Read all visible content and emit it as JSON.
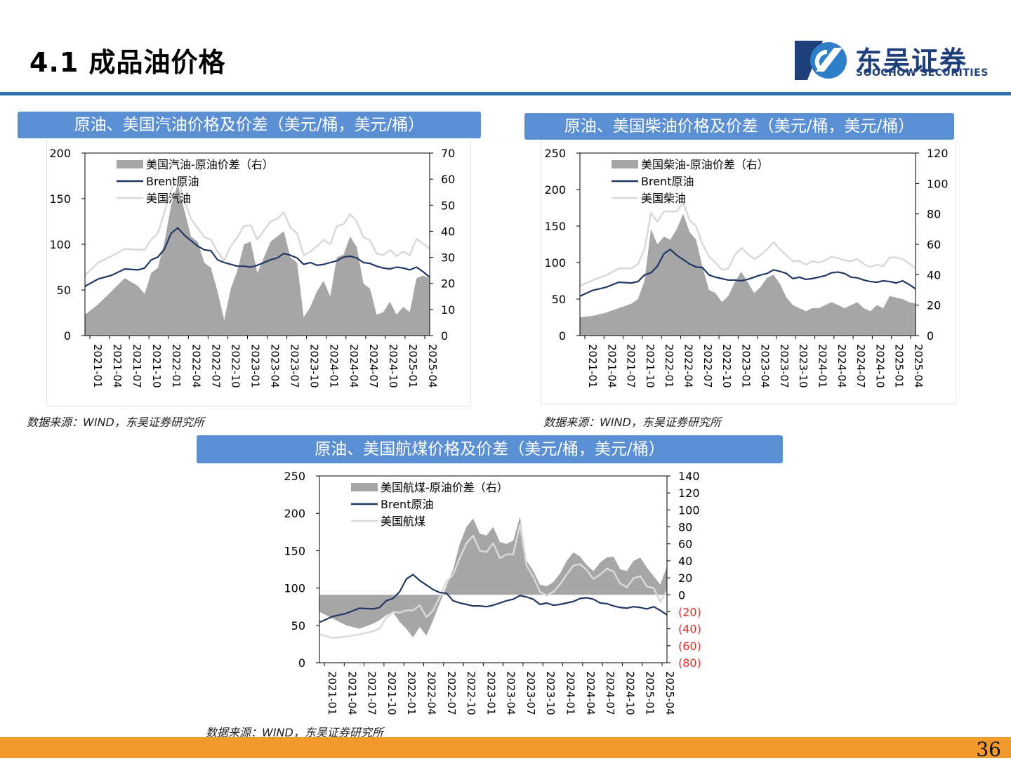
{
  "slide": {
    "title": "4.1 成品油价格",
    "logo_cn": "东吴证券",
    "logo_en": "SOOCHOW SECURITIES",
    "page_number": "36",
    "source": "数据来源：WIND，东吴证券研究所"
  },
  "colors": {
    "header_bg": "#5b8fd4",
    "rule": "#2f6fb0",
    "footer": "#f39a2e",
    "spread_fill": "#a6a6a6",
    "brent_line": "#1f3864",
    "product_line": "#d9d9d9",
    "negative_tick": "#e8302a"
  },
  "chart_data": [
    {
      "type": "area+line",
      "title": "原油、美国汽油价格及价差（美元/桶，美元/桶）",
      "x_ticks": [
        "2021-01",
        "2021-04",
        "2021-07",
        "2021-10",
        "2022-01",
        "2022-04",
        "2022-07",
        "2022-10",
        "2023-01",
        "2023-04",
        "2023-07",
        "2023-10",
        "2024-01",
        "2024-04",
        "2024-07",
        "2024-10",
        "2025-01",
        "2025-04"
      ],
      "left_ylim": [
        0,
        200
      ],
      "left_ticks": [
        "0",
        "50",
        "100",
        "150",
        "200"
      ],
      "right_ylim": [
        0,
        70
      ],
      "right_ticks": [
        "0",
        "10",
        "20",
        "30",
        "40",
        "50",
        "60",
        "70"
      ],
      "legend": [
        "美国汽油-原油价差（右）",
        "Brent原油",
        "美国汽油"
      ],
      "series": [
        {
          "name": "美国汽油-原油价差（右）",
          "axis": "right",
          "kind": "area",
          "x": [
            0,
            2,
            4,
            6,
            8,
            9,
            10,
            11,
            12,
            13,
            14,
            15,
            16,
            17,
            18,
            19,
            20,
            21,
            22,
            23,
            24,
            25,
            26,
            27,
            28,
            29,
            30,
            31,
            32,
            33,
            34,
            35,
            36,
            37,
            38,
            39,
            40,
            41,
            42,
            43,
            44,
            45,
            46,
            47,
            48,
            49,
            50,
            51,
            52
          ],
          "values": [
            8,
            12,
            17,
            22,
            19,
            16,
            24,
            26,
            36,
            50,
            58,
            48,
            38,
            36,
            28,
            26,
            17,
            6,
            18,
            25,
            35,
            36,
            24,
            30,
            36,
            38,
            40,
            30,
            28,
            7,
            11,
            17,
            21,
            15,
            30,
            31,
            38,
            34,
            20,
            18,
            8,
            9,
            13,
            8,
            11,
            9,
            22,
            23,
            22
          ]
        },
        {
          "name": "Brent原油",
          "axis": "left",
          "kind": "line",
          "x": [
            0,
            2,
            4,
            6,
            8,
            9,
            10,
            11,
            12,
            13,
            14,
            15,
            16,
            17,
            18,
            19,
            20,
            21,
            22,
            23,
            24,
            25,
            26,
            27,
            28,
            29,
            30,
            31,
            32,
            33,
            34,
            35,
            36,
            37,
            38,
            39,
            40,
            41,
            42,
            43,
            44,
            45,
            46,
            47,
            48,
            49,
            50,
            51,
            52
          ],
          "values": [
            54,
            62,
            66,
            73,
            72,
            74,
            83,
            86,
            95,
            112,
            118,
            110,
            104,
            98,
            94,
            93,
            83,
            80,
            78,
            76,
            76,
            75,
            77,
            80,
            83,
            85,
            90,
            88,
            85,
            78,
            80,
            77,
            78,
            80,
            82,
            86,
            87,
            85,
            80,
            79,
            76,
            74,
            73,
            75,
            74,
            72,
            75,
            70,
            64
          ]
        },
        {
          "name": "美国汽油",
          "axis": "left",
          "kind": "line",
          "x": [
            0,
            2,
            4,
            6,
            8,
            9,
            10,
            11,
            12,
            13,
            14,
            15,
            16,
            17,
            18,
            19,
            20,
            21,
            22,
            23,
            24,
            25,
            26,
            27,
            28,
            29,
            30,
            31,
            32,
            33,
            34,
            35,
            36,
            37,
            38,
            39,
            40,
            41,
            42,
            43,
            44,
            45,
            46,
            47,
            48,
            49,
            50,
            51,
            52
          ],
          "values": [
            66,
            80,
            87,
            95,
            94,
            94,
            105,
            112,
            135,
            160,
            172,
            148,
            128,
            118,
            108,
            105,
            92,
            82,
            98,
            108,
            120,
            121,
            105,
            115,
            125,
            128,
            135,
            118,
            112,
            88,
            92,
            98,
            105,
            100,
            120,
            122,
            133,
            125,
            108,
            104,
            90,
            88,
            94,
            87,
            92,
            88,
            106,
            101,
            95
          ]
        }
      ]
    },
    {
      "type": "area+line",
      "title": "原油、美国柴油价格及价差（美元/桶，美元/桶）",
      "x_ticks": [
        "2021-01",
        "2021-04",
        "2021-07",
        "2021-10",
        "2022-01",
        "2022-04",
        "2022-07",
        "2022-10",
        "2023-01",
        "2023-04",
        "2023-07",
        "2023-10",
        "2024-01",
        "2024-04",
        "2024-07",
        "2024-10",
        "2025-01",
        "2025-04"
      ],
      "left_ylim": [
        0,
        250
      ],
      "left_ticks": [
        "0",
        "50",
        "100",
        "150",
        "200",
        "250"
      ],
      "right_ylim": [
        0,
        120
      ],
      "right_ticks": [
        "0",
        "20",
        "40",
        "60",
        "80",
        "100",
        "120"
      ],
      "legend": [
        "美国柴油-原油价差（右）",
        "Brent原油",
        "美国柴油"
      ],
      "series": [
        {
          "name": "美国柴油-原油价差（右）",
          "axis": "right",
          "kind": "area",
          "x": [
            0,
            2,
            4,
            6,
            8,
            9,
            10,
            11,
            12,
            13,
            14,
            15,
            16,
            17,
            18,
            19,
            20,
            21,
            22,
            23,
            24,
            25,
            26,
            27,
            28,
            29,
            30,
            31,
            32,
            33,
            34,
            35,
            36,
            37,
            38,
            39,
            40,
            41,
            42,
            43,
            44,
            45,
            46,
            47,
            48,
            49,
            50,
            51,
            52
          ],
          "values": [
            12,
            13,
            15,
            18,
            21,
            24,
            36,
            70,
            60,
            65,
            63,
            70,
            80,
            68,
            63,
            45,
            30,
            28,
            22,
            26,
            35,
            42,
            35,
            28,
            32,
            38,
            40,
            34,
            25,
            20,
            18,
            16,
            18,
            18,
            20,
            22,
            20,
            18,
            20,
            22,
            18,
            16,
            20,
            18,
            26,
            25,
            24,
            22,
            21
          ]
        },
        {
          "name": "Brent原油",
          "axis": "left",
          "kind": "line",
          "x": [
            0,
            2,
            4,
            6,
            8,
            9,
            10,
            11,
            12,
            13,
            14,
            15,
            16,
            17,
            18,
            19,
            20,
            21,
            22,
            23,
            24,
            25,
            26,
            27,
            28,
            29,
            30,
            31,
            32,
            33,
            34,
            35,
            36,
            37,
            38,
            39,
            40,
            41,
            42,
            43,
            44,
            45,
            46,
            47,
            48,
            49,
            50,
            51,
            52
          ],
          "values": [
            54,
            62,
            66,
            73,
            72,
            74,
            83,
            86,
            95,
            112,
            118,
            110,
            104,
            98,
            94,
            93,
            83,
            80,
            78,
            76,
            76,
            75,
            77,
            80,
            83,
            85,
            90,
            88,
            85,
            78,
            80,
            77,
            78,
            80,
            82,
            86,
            87,
            85,
            80,
            79,
            76,
            74,
            73,
            75,
            74,
            72,
            75,
            70,
            64
          ]
        },
        {
          "name": "美国柴油",
          "axis": "left",
          "kind": "line",
          "x": [
            0,
            2,
            4,
            6,
            8,
            9,
            10,
            11,
            12,
            13,
            14,
            15,
            16,
            17,
            18,
            19,
            20,
            21,
            22,
            23,
            24,
            25,
            26,
            27,
            28,
            29,
            30,
            31,
            32,
            33,
            34,
            35,
            36,
            37,
            38,
            39,
            40,
            41,
            42,
            43,
            44,
            45,
            46,
            47,
            48,
            49,
            50,
            51,
            52
          ],
          "values": [
            68,
            76,
            82,
            92,
            92,
            98,
            118,
            168,
            156,
            170,
            170,
            170,
            182,
            158,
            150,
            125,
            108,
            100,
            90,
            92,
            110,
            120,
            112,
            105,
            110,
            118,
            128,
            118,
            110,
            102,
            102,
            97,
            102,
            100,
            103,
            108,
            106,
            103,
            102,
            105,
            98,
            94,
            97,
            95,
            107,
            107,
            105,
            99,
            92
          ]
        }
      ]
    },
    {
      "type": "area+line",
      "title": "原油、美国航煤价格及价差（美元/桶，美元/桶）",
      "x_ticks": [
        "2021-01",
        "2021-04",
        "2021-07",
        "2021-10",
        "2022-01",
        "2022-04",
        "2022-07",
        "2022-10",
        "2023-01",
        "2023-04",
        "2023-07",
        "2023-10",
        "2024-01",
        "2024-04",
        "2024-07",
        "2024-10",
        "2025-01",
        "2025-04"
      ],
      "left_ylim": [
        0,
        250
      ],
      "left_ticks": [
        "0",
        "50",
        "100",
        "150",
        "200",
        "250"
      ],
      "right_ylim": [
        -80,
        140
      ],
      "right_ticks": [
        "(80)",
        "(60)",
        "(40)",
        "(20)",
        "0",
        "20",
        "40",
        "60",
        "80",
        "100",
        "120",
        "140"
      ],
      "legend": [
        "美国航煤-原油价差（右）",
        "Brent原油",
        "美国航煤"
      ],
      "series": [
        {
          "name": "美国航煤-原油价差（右）",
          "axis": "right",
          "kind": "area",
          "x": [
            0,
            2,
            4,
            6,
            8,
            9,
            10,
            11,
            12,
            13,
            14,
            15,
            16,
            17,
            18,
            19,
            20,
            21,
            22,
            23,
            24,
            25,
            26,
            27,
            28,
            29,
            30,
            31,
            32,
            33,
            34,
            35,
            36,
            37,
            38,
            39,
            40,
            41,
            42,
            43,
            44,
            45,
            46,
            47,
            48,
            49,
            50,
            51,
            52
          ],
          "values": [
            -20,
            -28,
            -36,
            -40,
            -34,
            -30,
            -24,
            -20,
            -32,
            -40,
            -50,
            -38,
            -48,
            -30,
            -10,
            10,
            30,
            60,
            80,
            90,
            72,
            70,
            80,
            62,
            60,
            64,
            92,
            40,
            28,
            12,
            10,
            15,
            25,
            40,
            50,
            45,
            35,
            28,
            38,
            44,
            45,
            30,
            28,
            40,
            44,
            32,
            22,
            12,
            34
          ]
        },
        {
          "name": "Brent原油",
          "axis": "left",
          "kind": "line",
          "x": [
            0,
            2,
            4,
            6,
            8,
            9,
            10,
            11,
            12,
            13,
            14,
            15,
            16,
            17,
            18,
            19,
            20,
            21,
            22,
            23,
            24,
            25,
            26,
            27,
            28,
            29,
            30,
            31,
            32,
            33,
            34,
            35,
            36,
            37,
            38,
            39,
            40,
            41,
            42,
            43,
            44,
            45,
            46,
            47,
            48,
            49,
            50,
            51,
            52
          ],
          "values": [
            54,
            62,
            66,
            73,
            72,
            74,
            83,
            86,
            95,
            112,
            118,
            110,
            104,
            98,
            94,
            93,
            83,
            80,
            78,
            76,
            76,
            75,
            77,
            80,
            83,
            85,
            90,
            88,
            85,
            78,
            80,
            77,
            78,
            80,
            82,
            86,
            87,
            85,
            80,
            79,
            76,
            74,
            73,
            75,
            74,
            72,
            75,
            70,
            64
          ]
        },
        {
          "name": "美国航煤",
          "axis": "left",
          "kind": "line",
          "x": [
            0,
            2,
            4,
            6,
            8,
            9,
            10,
            11,
            12,
            13,
            14,
            15,
            16,
            17,
            18,
            19,
            20,
            21,
            22,
            23,
            24,
            25,
            26,
            27,
            28,
            29,
            30,
            31,
            32,
            33,
            34,
            35,
            36,
            37,
            38,
            39,
            40,
            41,
            42,
            43,
            44,
            45,
            46,
            47,
            48,
            49,
            50,
            51,
            52
          ],
          "values": [
            38,
            33,
            35,
            38,
            42,
            46,
            60,
            68,
            67,
            70,
            70,
            77,
            61,
            70,
            88,
            108,
            118,
            140,
            160,
            170,
            150,
            148,
            160,
            140,
            145,
            145,
            185,
            130,
            115,
            95,
            90,
            95,
            105,
            118,
            130,
            132,
            124,
            112,
            118,
            126,
            122,
            106,
            101,
            113,
            116,
            102,
            100,
            82,
            96
          ]
        }
      ]
    }
  ]
}
